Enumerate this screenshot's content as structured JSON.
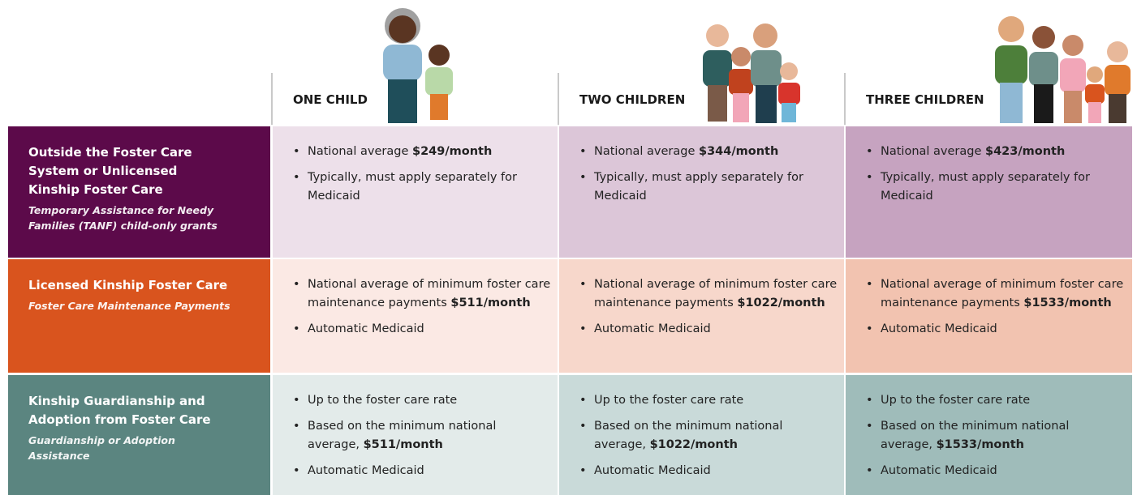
{
  "columns": [
    "ONE CHILD",
    "TWO CHILDREN",
    "THREE CHILDREN"
  ],
  "rows": [
    {
      "title": "Outside the Foster Care System or Unlicensed Kinship Foster Care",
      "subtitle": "Temporary Assistance for Needy Families (TANF) child-only grants",
      "cells": [
        [
          {
            "text": "National average ",
            "bold": "$249/month"
          },
          {
            "text": "Typically, must apply separately for Medicaid"
          }
        ],
        [
          {
            "text": "National average ",
            "bold": "$344/month"
          },
          {
            "text": "Typically, must apply separately for Medicaid"
          }
        ],
        [
          {
            "text": "National average ",
            "bold": "$423/month"
          },
          {
            "text": "Typically, must apply separately for Medicaid"
          }
        ]
      ]
    },
    {
      "title": "Licensed Kinship Foster Care",
      "subtitle": "Foster Care Maintenance Payments",
      "cells": [
        [
          {
            "text": "National average of minimum foster care maintenance payments ",
            "bold": "$511/month"
          },
          {
            "text": "Automatic Medicaid"
          }
        ],
        [
          {
            "text": "National average of minimum foster care maintenance payments ",
            "bold": "$1022/month"
          },
          {
            "text": "Automatic Medicaid"
          }
        ],
        [
          {
            "text": "National average of minimum foster care maintenance payments ",
            "bold": "$1533/month"
          },
          {
            "text": "Automatic Medicaid"
          }
        ]
      ]
    },
    {
      "title": "Kinship Guardianship and Adoption from Foster Care",
      "subtitle": "Guardianship or Adoption Assistance",
      "cells": [
        [
          {
            "text": "Up to the foster care rate"
          },
          {
            "text": "Based on the minimum national average, ",
            "bold": "$511/month"
          },
          {
            "text": "Automatic Medicaid"
          }
        ],
        [
          {
            "text": "Up to the foster care rate"
          },
          {
            "text": "Based on the minimum national average, ",
            "bold": "$1022/month"
          },
          {
            "text": "Automatic Medicaid"
          }
        ],
        [
          {
            "text": "Up to the foster care rate"
          },
          {
            "text": "Based on the minimum national average, ",
            "bold": "$1533/month"
          },
          {
            "text": "Automatic Medicaid"
          }
        ]
      ]
    }
  ]
}
